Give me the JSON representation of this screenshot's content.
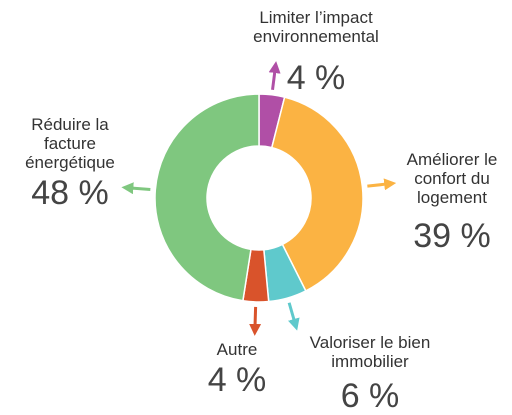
{
  "chart_data": {
    "type": "donut",
    "categories": [
      "Limiter l’impact environnemental",
      "Améliorer le confort du logement",
      "Valoriser le bien immobilier",
      "Autre",
      "Réduire la facture énergétique"
    ],
    "values": [
      4,
      39,
      6,
      4,
      48
    ],
    "value_labels": [
      "4 %",
      "39 %",
      "6 %",
      "4 %",
      "48 %"
    ],
    "colors": [
      "#b04fa6",
      "#fbb343",
      "#5fc9cc",
      "#d9532b",
      "#7fc77f"
    ]
  }
}
